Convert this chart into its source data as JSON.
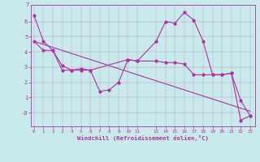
{
  "x_all": [
    0,
    1,
    2,
    3,
    4,
    5,
    6,
    7,
    8,
    9,
    10,
    11,
    13,
    14,
    15,
    16,
    17,
    18,
    19,
    20,
    21,
    22,
    23
  ],
  "line1_y": [
    6.4,
    4.7,
    4.1,
    2.8,
    2.8,
    2.9,
    2.8,
    1.4,
    1.5,
    2.0,
    3.5,
    3.4,
    4.7,
    6.0,
    5.9,
    6.6,
    6.1,
    4.7,
    2.5,
    2.5,
    2.6,
    -0.5,
    -0.2
  ],
  "line2_y": [
    4.7,
    4.1,
    4.1,
    3.1,
    2.8,
    2.8,
    2.8,
    null,
    null,
    null,
    3.5,
    3.4,
    3.4,
    3.3,
    3.3,
    3.2,
    2.5,
    2.5,
    2.5,
    2.5,
    2.6,
    0.8,
    -0.2
  ],
  "line3_x": [
    0,
    23
  ],
  "line3_y": [
    4.7,
    0.1
  ],
  "color": "#b030a0",
  "bg_color": "#c8eaea",
  "xlabel": "Windchill (Refroidissement éolien,°C)",
  "yticks": [
    0,
    1,
    2,
    3,
    4,
    5,
    6
  ],
  "ytick_labels": [
    "-0",
    "1",
    "2",
    "3",
    "4",
    "5",
    "6"
  ],
  "xticks": [
    0,
    1,
    2,
    3,
    4,
    5,
    6,
    7,
    8,
    9,
    10,
    11,
    13,
    14,
    15,
    16,
    17,
    18,
    19,
    20,
    21,
    22,
    23
  ],
  "ylim": [
    -0.9,
    7.1
  ],
  "xlim": [
    -0.3,
    23.5
  ]
}
